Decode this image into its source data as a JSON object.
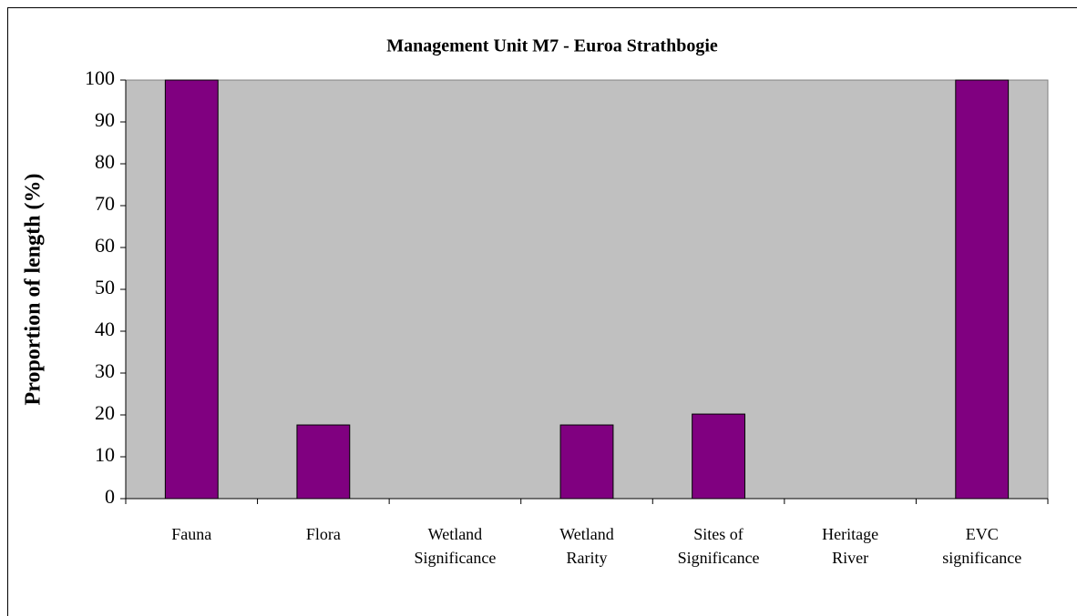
{
  "chart_data": {
    "type": "bar",
    "title": "Management Unit M7 - Euroa Strathbogie",
    "ylabel": "Proportion of length (%)",
    "categories": [
      "Fauna",
      "Flora",
      "Wetland Significance",
      "Wetland Rarity",
      "Sites of Significance",
      "Heritage River",
      "EVC significance"
    ],
    "values": [
      100,
      17.6,
      0,
      17.6,
      20.2,
      0,
      100
    ],
    "color": "#800080",
    "plot_background": "#c0c0c0",
    "ylim": [
      0,
      100
    ],
    "yticks": [
      0,
      10,
      20,
      30,
      40,
      50,
      60,
      70,
      80,
      90,
      100
    ],
    "grid": false
  }
}
